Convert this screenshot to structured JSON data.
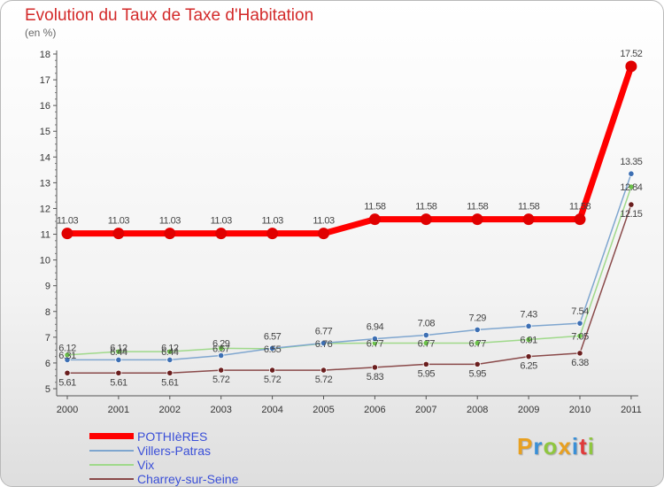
{
  "chart_data": {
    "type": "line",
    "title": "Evolution du Taux de Taxe d'Habitation",
    "unit_label": "(en %)",
    "xlabel": "",
    "ylabel": "",
    "ylim": [
      5,
      18
    ],
    "grid": false,
    "legend_position": "bottom-left",
    "categories": [
      "2000",
      "2001",
      "2002",
      "2003",
      "2004",
      "2005",
      "2006",
      "2007",
      "2008",
      "2009",
      "2010",
      "2011"
    ],
    "y_ticks": [
      "5",
      "6",
      "7",
      "8",
      "9",
      "10",
      "11",
      "12",
      "13",
      "14",
      "15",
      "16",
      "17",
      "18"
    ],
    "series": [
      {
        "name": "POTHIèRES",
        "color": "#ff0000",
        "marker_color": "#e00000",
        "values": [
          11.03,
          11.03,
          11.03,
          11.03,
          11.03,
          11.03,
          11.58,
          11.58,
          11.58,
          11.58,
          11.58,
          17.52
        ],
        "labels": [
          "11.03",
          "11.03",
          "11.03",
          "11.03",
          "11.03",
          "11.03",
          "11.58",
          "11.58",
          "11.58",
          "11.58",
          "11.58",
          "17.52"
        ]
      },
      {
        "name": "Villers-Patras",
        "color": "#7fa6cf",
        "marker_color": "#3d6fb3",
        "values": [
          6.12,
          6.12,
          6.12,
          6.29,
          6.57,
          6.77,
          6.94,
          7.08,
          7.29,
          7.43,
          7.54,
          13.35
        ],
        "labels": [
          "6.12",
          "6.12",
          "6.12",
          "6.29",
          "6.57",
          "6.77",
          "6.94",
          "7.08",
          "7.29",
          "7.43",
          "7.54",
          "13.35"
        ]
      },
      {
        "name": "Vix",
        "color": "#9fd98a",
        "marker_color": "#6cc24a",
        "values": [
          6.31,
          6.44,
          6.44,
          6.57,
          6.55,
          6.76,
          6.77,
          6.77,
          6.77,
          6.91,
          7.05,
          12.84
        ],
        "labels": [
          "6.31",
          "6.44",
          "6.44",
          "6.57",
          "6.55",
          "6.76",
          "6.77",
          "6.77",
          "6.77",
          "6.91",
          "7.05",
          "12.84"
        ]
      },
      {
        "name": "Charrey-sur-Seine",
        "color": "#8a4a4a",
        "marker_color": "#6a1e1e",
        "values": [
          5.61,
          5.61,
          5.61,
          5.72,
          5.72,
          5.72,
          5.83,
          5.95,
          5.95,
          6.25,
          6.38,
          12.15
        ],
        "labels": [
          "5.61",
          "5.61",
          "5.61",
          "5.72",
          "5.72",
          "5.72",
          "5.83",
          "5.95",
          "5.95",
          "6.25",
          "6.38",
          "12.15"
        ]
      }
    ]
  },
  "branding": {
    "logo_letters": [
      "P",
      "r",
      "o",
      "x",
      "i",
      "t",
      "i"
    ],
    "logo_colors": [
      "#e8a020",
      "#3a8fd6",
      "#8fc63f",
      "#e8a020",
      "#3a8fd6",
      "#e03a3a",
      "#8fc63f"
    ]
  }
}
